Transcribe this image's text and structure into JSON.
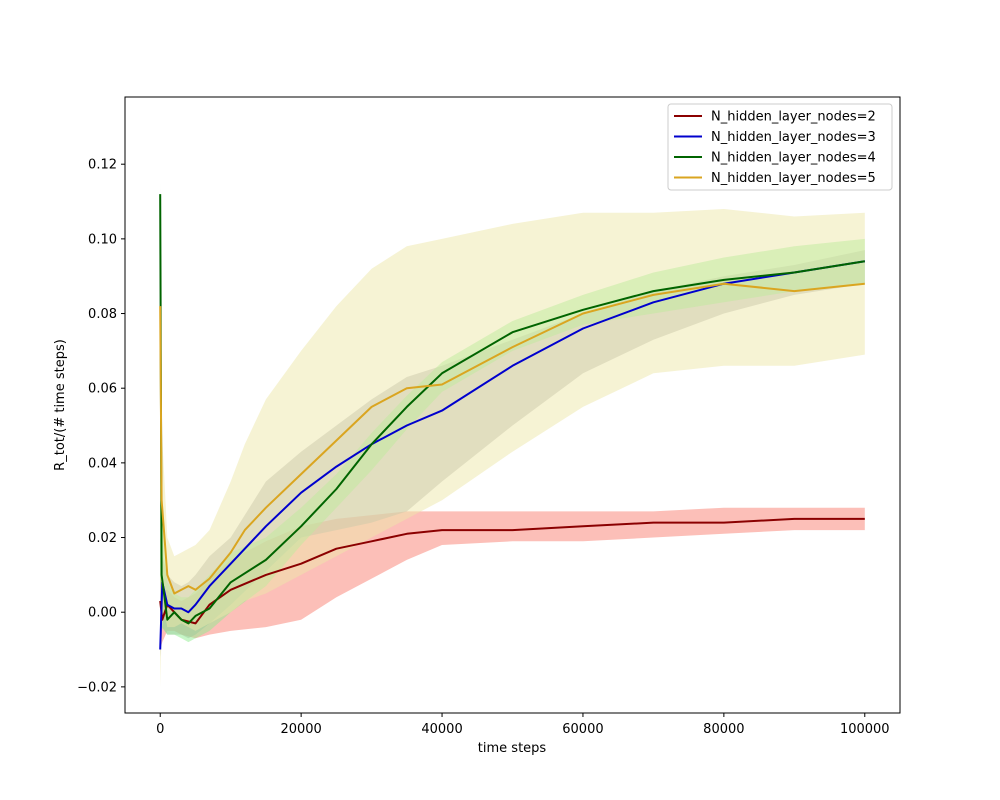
{
  "chart_data": {
    "type": "line",
    "title": "",
    "xlabel": "time steps",
    "ylabel": "R_tot/(# time steps)",
    "xlim": [
      -5000,
      105000
    ],
    "ylim": [
      -0.027,
      0.138
    ],
    "xticks": [
      0,
      20000,
      40000,
      60000,
      80000,
      100000
    ],
    "xtick_labels": [
      "0",
      "20000",
      "40000",
      "60000",
      "80000",
      "100000"
    ],
    "yticks": [
      -0.02,
      0.0,
      0.02,
      0.04,
      0.06,
      0.08,
      0.1,
      0.12
    ],
    "ytick_labels": [
      "−0.02",
      "0.00",
      "0.02",
      "0.04",
      "0.06",
      "0.08",
      "0.10",
      "0.12"
    ],
    "grid": false,
    "legend_position": "top-right",
    "series": [
      {
        "name": "N_hidden_layer_nodes=2",
        "color": "#8b0000",
        "band_color": "#fa8072",
        "x": [
          0,
          300,
          1000,
          2000,
          3000,
          5000,
          7000,
          10000,
          15000,
          20000,
          25000,
          30000,
          35000,
          40000,
          50000,
          60000,
          70000,
          80000,
          90000,
          100000
        ],
        "mean": [
          0.003,
          -0.002,
          0.002,
          0.0,
          -0.002,
          -0.003,
          0.002,
          0.006,
          0.01,
          0.013,
          0.017,
          0.019,
          0.021,
          0.022,
          0.022,
          0.023,
          0.024,
          0.024,
          0.025,
          0.025
        ],
        "upper": [
          0.01,
          0.006,
          0.006,
          0.004,
          0.003,
          0.005,
          0.009,
          0.014,
          0.019,
          0.023,
          0.025,
          0.026,
          0.027,
          0.027,
          0.027,
          0.027,
          0.027,
          0.028,
          0.028,
          0.028
        ],
        "lower": [
          -0.01,
          -0.008,
          -0.005,
          -0.005,
          -0.006,
          -0.007,
          -0.006,
          -0.005,
          -0.004,
          -0.002,
          0.004,
          0.009,
          0.014,
          0.018,
          0.019,
          0.019,
          0.02,
          0.021,
          0.022,
          0.022
        ]
      },
      {
        "name": "N_hidden_layer_nodes=3",
        "color": "#0000cd",
        "band_color": "#aaaaaa",
        "x": [
          0,
          300,
          1000,
          2000,
          3000,
          4000,
          5000,
          7000,
          10000,
          15000,
          20000,
          25000,
          30000,
          35000,
          40000,
          50000,
          60000,
          70000,
          80000,
          90000,
          100000
        ],
        "mean": [
          -0.01,
          0.008,
          0.002,
          0.001,
          0.001,
          0.0,
          0.002,
          0.007,
          0.013,
          0.023,
          0.032,
          0.039,
          0.045,
          0.05,
          0.054,
          0.066,
          0.076,
          0.083,
          0.088,
          0.091,
          0.094
        ],
        "upper": [
          0.02,
          0.015,
          0.01,
          0.008,
          0.007,
          0.008,
          0.01,
          0.015,
          0.02,
          0.035,
          0.043,
          0.05,
          0.057,
          0.063,
          0.066,
          0.073,
          0.08,
          0.086,
          0.09,
          0.093,
          0.097
        ],
        "lower": [
          -0.012,
          -0.004,
          -0.006,
          -0.006,
          -0.006,
          -0.007,
          -0.006,
          -0.003,
          0.002,
          0.011,
          0.02,
          0.022,
          0.024,
          0.027,
          0.035,
          0.05,
          0.064,
          0.073,
          0.08,
          0.085,
          0.088
        ]
      },
      {
        "name": "N_hidden_layer_nodes=4",
        "color": "#006400",
        "band_color": "#90ee90",
        "x": [
          0,
          200,
          600,
          1000,
          2000,
          3000,
          4000,
          5000,
          7000,
          10000,
          15000,
          20000,
          25000,
          30000,
          35000,
          40000,
          50000,
          60000,
          70000,
          80000,
          90000,
          100000
        ],
        "mean": [
          0.112,
          0.01,
          0.004,
          -0.002,
          0.0,
          -0.002,
          -0.003,
          -0.001,
          0.001,
          0.008,
          0.014,
          0.023,
          0.033,
          0.045,
          0.055,
          0.064,
          0.075,
          0.081,
          0.086,
          0.089,
          0.091,
          0.094
        ],
        "upper": [
          0.115,
          0.03,
          0.015,
          0.008,
          0.005,
          0.004,
          0.004,
          0.006,
          0.01,
          0.016,
          0.02,
          0.028,
          0.037,
          0.048,
          0.058,
          0.067,
          0.078,
          0.085,
          0.091,
          0.095,
          0.098,
          0.1
        ],
        "lower": [
          0.0,
          -0.004,
          -0.005,
          -0.006,
          -0.006,
          -0.007,
          -0.008,
          -0.007,
          -0.005,
          0.0,
          0.007,
          0.018,
          0.028,
          0.038,
          0.049,
          0.059,
          0.07,
          0.077,
          0.08,
          0.083,
          0.086,
          0.088
        ]
      },
      {
        "name": "N_hidden_layer_nodes=5",
        "color": "#daa520",
        "band_color": "#eee8aa",
        "x": [
          0,
          200,
          600,
          1000,
          2000,
          3000,
          4000,
          5000,
          7000,
          10000,
          12000,
          15000,
          20000,
          25000,
          30000,
          35000,
          40000,
          50000,
          60000,
          70000,
          80000,
          90000,
          100000
        ],
        "mean": [
          0.082,
          0.03,
          0.02,
          0.01,
          0.005,
          0.006,
          0.007,
          0.006,
          0.009,
          0.016,
          0.022,
          0.028,
          0.037,
          0.046,
          0.055,
          0.06,
          0.061,
          0.071,
          0.08,
          0.085,
          0.088,
          0.086,
          0.088
        ],
        "upper": [
          0.09,
          0.05,
          0.035,
          0.02,
          0.015,
          0.016,
          0.017,
          0.018,
          0.022,
          0.035,
          0.045,
          0.057,
          0.07,
          0.082,
          0.092,
          0.098,
          0.1,
          0.104,
          0.107,
          0.107,
          0.108,
          0.106,
          0.107
        ],
        "lower": [
          -0.02,
          -0.005,
          0.0,
          -0.004,
          -0.004,
          -0.003,
          -0.004,
          -0.005,
          -0.003,
          0.0,
          0.003,
          0.005,
          0.01,
          0.015,
          0.02,
          0.025,
          0.03,
          0.043,
          0.055,
          0.064,
          0.066,
          0.066,
          0.069
        ]
      }
    ]
  }
}
